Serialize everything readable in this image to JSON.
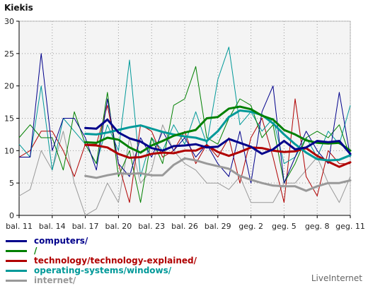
{
  "app": {
    "brand": "LiveInternet"
  },
  "chart_data": {
    "type": "line",
    "ylabel": "Kiekis",
    "ylim": [
      0,
      30
    ],
    "yticks": [
      0,
      5,
      10,
      15,
      20,
      25,
      30
    ],
    "x_tick_labels": [
      "bal. 11",
      "bal. 14",
      "bal. 17",
      "bal. 20",
      "bal. 23",
      "bal. 26",
      "bal. 29",
      "geg. 2",
      "geg. 5",
      "geg. 8",
      "geg. 11"
    ],
    "x": [
      "bal. 11",
      "bal. 12",
      "bal. 13",
      "bal. 14",
      "bal. 15",
      "bal. 16",
      "bal. 17",
      "bal. 18",
      "bal. 19",
      "bal. 20",
      "bal. 21",
      "bal. 22",
      "bal. 23",
      "bal. 24",
      "bal. 25",
      "bal. 26",
      "bal. 27",
      "bal. 28",
      "bal. 29",
      "bal. 30",
      "geg. 1",
      "geg. 2",
      "geg. 3",
      "geg. 4",
      "geg. 5",
      "geg. 6",
      "geg. 7",
      "geg. 8",
      "geg. 9",
      "geg. 10",
      "geg. 11"
    ],
    "grid": true,
    "legend_position": "bottom",
    "series": [
      {
        "name": "computers/",
        "color": "#00008b",
        "values": [
          9,
          9,
          25,
          10,
          15,
          15,
          12,
          7,
          18,
          8,
          6,
          12,
          9,
          13,
          10,
          12,
          9,
          11,
          8,
          6,
          13,
          5,
          16,
          20,
          5,
          9,
          13,
          10,
          8,
          19,
          9
        ],
        "moving_average": [
          null,
          null,
          null,
          null,
          null,
          null,
          13.5,
          13.4,
          14.8,
          12.8,
          11.9,
          11.4,
          10.4,
          10.0,
          10.7,
          10.8,
          11.0,
          10.5,
          10.6,
          11.8,
          11.2,
          10.6,
          9.5,
          10.2,
          11.5,
          10.2,
          10.5,
          11.5,
          11.3,
          11.5,
          9.5
        ]
      },
      {
        "name": "/",
        "color": "#008000",
        "values": [
          12,
          14,
          12,
          12,
          7,
          16,
          11,
          8,
          19,
          6,
          10,
          2,
          12,
          8,
          17,
          18,
          23,
          12,
          11,
          15,
          18,
          17,
          12,
          14,
          5,
          8,
          12,
          13,
          12,
          14,
          9
        ],
        "moving_average": [
          null,
          null,
          null,
          null,
          null,
          null,
          11.3,
          11.2,
          12.0,
          11.7,
          10.5,
          9.7,
          10.8,
          11.5,
          12.3,
          12.8,
          13.2,
          15.0,
          15.2,
          16.5,
          16.8,
          16.4,
          15.4,
          14.8,
          13.2,
          12.5,
          11.6,
          11.2,
          11.1,
          11.2,
          10.0
        ]
      },
      {
        "name": "technology/technology-explained/",
        "color": "#b00000",
        "values": [
          9,
          10,
          13,
          13,
          10,
          6,
          11,
          11,
          17,
          8,
          2,
          14,
          13,
          9,
          10,
          13,
          8,
          11,
          9,
          12,
          5,
          12,
          15,
          9,
          2,
          18,
          6,
          3,
          10,
          8,
          8
        ],
        "moving_average": [
          null,
          null,
          null,
          null,
          null,
          null,
          10.9,
          10.8,
          10.5,
          9.5,
          8.9,
          9.0,
          9.5,
          9.7,
          9.6,
          10.0,
          10.0,
          10.8,
          9.8,
          9.2,
          9.8,
          10.5,
          10.4,
          10.0,
          9.8,
          9.9,
          10.4,
          9.2,
          8.3,
          7.5,
          8.2
        ]
      },
      {
        "name": "operating-systems/windows/",
        "color": "#009999",
        "values": [
          11,
          9,
          20,
          7,
          15,
          13,
          11,
          8,
          14,
          10,
          24,
          6,
          12,
          10,
          14,
          11,
          16,
          11,
          21,
          26,
          14,
          16,
          13,
          15,
          8,
          9,
          12,
          9,
          13,
          11,
          17
        ],
        "moving_average": [
          null,
          null,
          null,
          null,
          null,
          null,
          12.6,
          12.5,
          12.8,
          13.2,
          13.6,
          13.9,
          13.4,
          12.9,
          12.5,
          12.2,
          12.0,
          11.5,
          13.0,
          15.2,
          16.2,
          16.0,
          15.5,
          14.2,
          12.5,
          11.0,
          9.7,
          8.7,
          8.5,
          8.6,
          9.3
        ]
      },
      {
        "name": "internet/",
        "color": "#999999",
        "values": [
          3,
          4,
          10,
          7,
          13,
          5,
          0,
          1,
          5,
          2,
          12,
          5,
          7,
          14,
          10,
          8,
          7,
          5,
          5,
          4,
          6,
          2,
          2,
          2,
          5,
          5,
          7,
          9,
          5,
          2,
          6
        ],
        "moving_average": [
          null,
          null,
          null,
          null,
          null,
          null,
          6.1,
          5.8,
          6.2,
          6.5,
          6.4,
          6.5,
          6.2,
          6.2,
          7.8,
          8.8,
          8.5,
          8.0,
          7.6,
          7.2,
          6.1,
          5.5,
          5.0,
          4.6,
          4.5,
          4.5,
          3.8,
          4.5,
          5.0,
          5.0,
          5.4
        ]
      }
    ]
  }
}
